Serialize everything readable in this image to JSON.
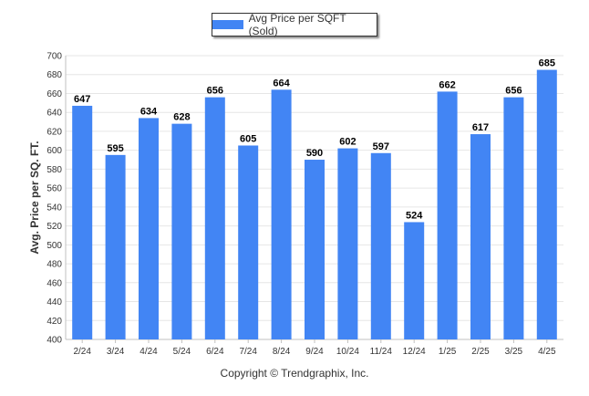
{
  "chart_data": {
    "type": "bar",
    "categories": [
      "2/24",
      "3/24",
      "4/24",
      "5/24",
      "6/24",
      "7/24",
      "8/24",
      "9/24",
      "10/24",
      "11/24",
      "12/24",
      "1/25",
      "2/25",
      "3/25",
      "4/25"
    ],
    "series": [
      {
        "name": "Avg Price per SQFT (Sold)",
        "values": [
          647,
          595,
          634,
          628,
          656,
          605,
          664,
          590,
          602,
          597,
          524,
          662,
          617,
          656,
          685
        ]
      }
    ],
    "ylabel": "Avg. Price per SQ. FT.",
    "xlabel": "",
    "ylim": [
      400,
      700
    ],
    "yticks": [
      400,
      420,
      440,
      460,
      480,
      500,
      520,
      540,
      560,
      580,
      600,
      620,
      640,
      660,
      680,
      700
    ],
    "grid": true,
    "legend_position": "top-center",
    "bar_color": "#4285f4"
  },
  "footer": {
    "copyright": "Copyright © Trendgraphix, Inc."
  }
}
